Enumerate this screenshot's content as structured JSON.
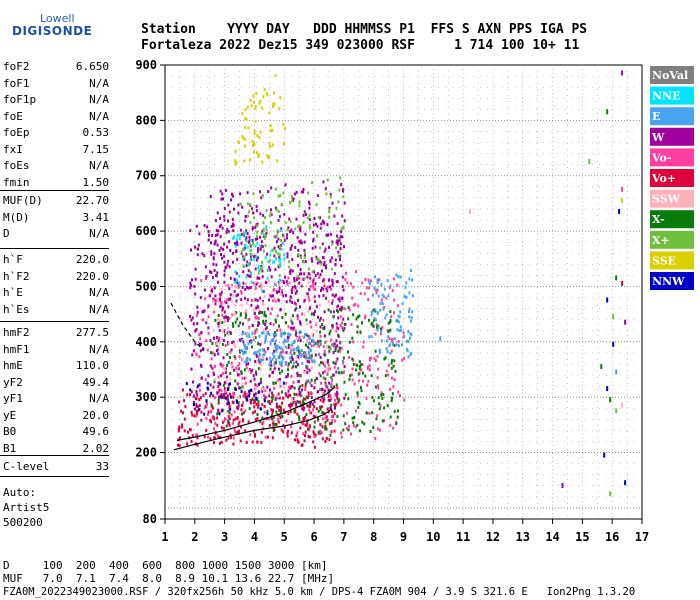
{
  "logo": {
    "top": "Lowell",
    "main": "DIGISONDE"
  },
  "header": {
    "line1": "Station    YYYY DAY   DDD HHMMSS P1  FFS S AXN PPS IGA PS",
    "line2": "Fortaleza 2022 Dez15 349 023000 RSF     1 714 100 10+ 11"
  },
  "params_group1": [
    {
      "name": "foF2",
      "value": "6.650"
    },
    {
      "name": "foF1",
      "value": "N/A"
    },
    {
      "name": "foF1p",
      "value": "N/A"
    },
    {
      "name": "foE",
      "value": "N/A"
    },
    {
      "name": "foEp",
      "value": "0.53"
    },
    {
      "name": "fxI",
      "value": "7.15"
    },
    {
      "name": "foEs",
      "value": "N/A"
    },
    {
      "name": "fmin",
      "value": "1.50"
    }
  ],
  "params_group2": [
    {
      "name": "MUF(D)",
      "value": "22.70"
    },
    {
      "name": "M(D)",
      "value": "3.41"
    },
    {
      "name": "D",
      "value": "N/A"
    }
  ],
  "params_group3": [
    {
      "name": "h`F",
      "value": "220.0"
    },
    {
      "name": "h`F2",
      "value": "220.0"
    },
    {
      "name": "h`E",
      "value": "N/A"
    },
    {
      "name": "h`Es",
      "value": "N/A"
    }
  ],
  "params_group4": [
    {
      "name": "hmF2",
      "value": "277.5"
    },
    {
      "name": "hmF1",
      "value": "N/A"
    },
    {
      "name": "hmE",
      "value": "110.0"
    },
    {
      "name": "yF2",
      "value": "49.4"
    },
    {
      "name": "yF1",
      "value": "N/A"
    },
    {
      "name": "yE",
      "value": "20.0"
    },
    {
      "name": "B0",
      "value": "49.6"
    },
    {
      "name": "B1",
      "value": "2.02"
    }
  ],
  "clevel": {
    "name": "C-level",
    "value": "33"
  },
  "auto": {
    "line1": "Auto:",
    "line2": "Artist5",
    "line3": "500200"
  },
  "footer": {
    "d_line": "D     100  200  400  600  800 1000 1500 3000 [km]",
    "muf_line": "MUF   7.0  7.1  7.4  8.0  8.9 10.1 13.6 22.7 [MHz]",
    "file_line": "FZA0M_2022349023000.RSF / 320fx256h 50 kHz 5.0 km / DPS-4 FZA0M 904 / 3.9 S 321.6 E   Ion2Png 1.3.20"
  },
  "legend": [
    {
      "label": "NoVal",
      "color": "#7f7f7f"
    },
    {
      "label": "NNE",
      "color": "#00e5ff"
    },
    {
      "label": "E",
      "color": "#4aa3f0"
    },
    {
      "label": "W",
      "color": "#a000a0"
    },
    {
      "label": "Vo-",
      "color": "#ff3fa0"
    },
    {
      "label": "Vo+",
      "color": "#e0003c"
    },
    {
      "label": "SSW",
      "color": "#ffb0b8"
    },
    {
      "label": "X-",
      "color": "#0a7a0a"
    },
    {
      "label": "X+",
      "color": "#6fbf3f"
    },
    {
      "label": "SSE",
      "color": "#d8d000"
    },
    {
      "label": "NNW",
      "color": "#0000c8"
    }
  ],
  "chart_data": {
    "type": "scatter",
    "title": "",
    "xlabel": "",
    "ylabel": "",
    "xlim": [
      1,
      17
    ],
    "ylim": [
      80,
      900
    ],
    "x_ticks": [
      "1",
      "2",
      "3",
      "4",
      "5",
      "6",
      "7",
      "8",
      "9",
      "10",
      "11",
      "12",
      "13",
      "14",
      "15",
      "16",
      "17"
    ],
    "y_ticks": [
      "80",
      "200",
      "300",
      "400",
      "500",
      "600",
      "700",
      "800",
      "900"
    ],
    "y_tick_values": [
      80,
      200,
      300,
      400,
      500,
      600,
      700,
      800,
      900
    ],
    "grid": true,
    "profile_curve": {
      "name": "",
      "color": "#000000",
      "points": [
        [
          1.3,
          205
        ],
        [
          2,
          215
        ],
        [
          3,
          228
        ],
        [
          4,
          240
        ],
        [
          5,
          248
        ],
        [
          5.8,
          258
        ],
        [
          6.3,
          268
        ],
        [
          6.6,
          278
        ]
      ]
    },
    "trace_curve": {
      "name": "",
      "color": "#000000",
      "points": [
        [
          1.4,
          222
        ],
        [
          2,
          228
        ],
        [
          3,
          240
        ],
        [
          4,
          255
        ],
        [
          5,
          272
        ],
        [
          5.8,
          290
        ],
        [
          6.4,
          305
        ],
        [
          6.7,
          318
        ]
      ]
    },
    "dashed_curve": {
      "name": "",
      "color": "#000000",
      "points": [
        [
          1.2,
          470
        ],
        [
          1.6,
          430
        ],
        [
          2,
          400
        ],
        [
          2.3,
          385
        ]
      ]
    },
    "clusters": [
      {
        "series": "Vo+",
        "x": [
          1.4,
          6.8
        ],
        "y": [
          215,
          320
        ],
        "n": 320,
        "slope": 20
      },
      {
        "series": "Vo-",
        "x": [
          2.0,
          9.0
        ],
        "y": [
          230,
          520
        ],
        "n": 420,
        "slope": 38
      },
      {
        "series": "X-",
        "x": [
          2.5,
          8.8
        ],
        "y": [
          235,
          460
        ],
        "n": 320,
        "slope": 32
      },
      {
        "series": "W",
        "x": [
          1.8,
          7.0
        ],
        "y": [
          280,
          620
        ],
        "n": 520,
        "slope": 45
      },
      {
        "series": "W",
        "x": [
          2.5,
          7.0
        ],
        "y": [
          470,
          680
        ],
        "n": 260,
        "slope": 40
      },
      {
        "series": "E",
        "x": [
          3.5,
          6.0
        ],
        "y": [
          360,
          420
        ],
        "n": 140,
        "slope": 0
      },
      {
        "series": "E",
        "x": [
          7.8,
          9.3
        ],
        "y": [
          380,
          520
        ],
        "n": 90,
        "slope": 40
      },
      {
        "series": "NNE",
        "x": [
          3.2,
          5.0
        ],
        "y": [
          500,
          600
        ],
        "n": 60,
        "slope": 35
      },
      {
        "series": "X+",
        "x": [
          3.5,
          7.0
        ],
        "y": [
          520,
          680
        ],
        "n": 120,
        "slope": 45
      },
      {
        "series": "SSE",
        "x": [
          3.3,
          5.0
        ],
        "y": [
          720,
          860
        ],
        "n": 70,
        "slope": 50
      },
      {
        "series": "SSW",
        "x": [
          2.5,
          6.5
        ],
        "y": [
          300,
          520
        ],
        "n": 120,
        "slope": 35
      },
      {
        "series": "NNW",
        "x": [
          1.6,
          5.0
        ],
        "y": [
          270,
          330
        ],
        "n": 40,
        "slope": 10
      },
      {
        "series": "NoVal",
        "x": [
          5.5,
          7.0
        ],
        "y": [
          300,
          400
        ],
        "n": 40,
        "slope": 15
      }
    ],
    "sparse_points": [
      {
        "series": "Vo-",
        "x": 16.3,
        "y": 680
      },
      {
        "series": "SSE",
        "x": 16.3,
        "y": 660
      },
      {
        "series": "NNW",
        "x": 16.2,
        "y": 640
      },
      {
        "series": "X-",
        "x": 16.1,
        "y": 520
      },
      {
        "series": "Vo+",
        "x": 16.3,
        "y": 510
      },
      {
        "series": "NNW",
        "x": 15.8,
        "y": 480
      },
      {
        "series": "X+",
        "x": 16.0,
        "y": 450
      },
      {
        "series": "W",
        "x": 16.4,
        "y": 440
      },
      {
        "series": "NNW",
        "x": 16.0,
        "y": 400
      },
      {
        "series": "X-",
        "x": 15.6,
        "y": 360
      },
      {
        "series": "E",
        "x": 16.1,
        "y": 350
      },
      {
        "series": "NNW",
        "x": 15.8,
        "y": 320
      },
      {
        "series": "X-",
        "x": 15.9,
        "y": 300
      },
      {
        "series": "SSW",
        "x": 16.3,
        "y": 290
      },
      {
        "series": "X+",
        "x": 16.1,
        "y": 280
      },
      {
        "series": "NNW",
        "x": 15.7,
        "y": 200
      },
      {
        "series": "W",
        "x": 14.3,
        "y": 145
      },
      {
        "series": "NNW",
        "x": 16.4,
        "y": 150
      },
      {
        "series": "X+",
        "x": 15.9,
        "y": 130
      },
      {
        "series": "W",
        "x": 16.3,
        "y": 890
      },
      {
        "series": "X-",
        "x": 15.8,
        "y": 820
      },
      {
        "series": "X+",
        "x": 15.2,
        "y": 730
      },
      {
        "series": "SSW",
        "x": 11.2,
        "y": 640
      },
      {
        "series": "E",
        "x": 10.2,
        "y": 410
      }
    ]
  }
}
